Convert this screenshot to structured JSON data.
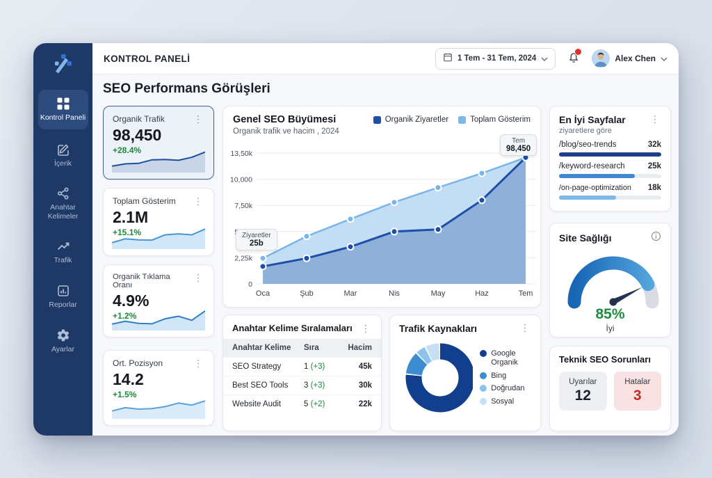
{
  "theme": {
    "sidebar_bg": "#1f3966",
    "accent_dark_blue": "#1d4fa8",
    "accent_light_blue": "#7db9e8",
    "green": "#1a8a3a",
    "red": "#c03028"
  },
  "header": {
    "title": "KONTROL PANELİ",
    "date_range": "1 Tem - 31 Tem, 2024",
    "user_name": "Alex Chen",
    "icons": [
      "calendar-icon",
      "chevron-down-icon",
      "bell-icon",
      "avatar"
    ]
  },
  "sidebar": {
    "logo_icon": "brand-logo",
    "items": [
      {
        "label": "Kontrol Paneli",
        "icon": "dashboard-grid-icon",
        "active": true
      },
      {
        "label": "İçerik",
        "icon": "edit-icon",
        "active": false
      },
      {
        "label": "Anahtar Kelimeler",
        "icon": "nodes-icon",
        "active": false
      },
      {
        "label": "Trafik",
        "icon": "trend-icon",
        "active": false
      },
      {
        "label": "Reporlar",
        "icon": "bar-chart-icon",
        "active": false
      },
      {
        "label": "Ayarlar",
        "icon": "gear-icon",
        "active": false
      }
    ]
  },
  "page": {
    "title": "SEO Performans Görüşleri"
  },
  "stat_cards": [
    {
      "title": "Organik Trafik",
      "value": "98,450",
      "change": "+28.4%",
      "line_color": "#1d4f9e",
      "fill_color": "#c7d2e6",
      "spark": [
        2,
        2.9,
        3.1,
        4.5,
        4.6,
        4.3,
        5.5,
        7.6
      ]
    },
    {
      "title": "Toplam Gösterim",
      "value": "2.1M",
      "change": "+15.1%",
      "line_color": "#4596d6",
      "fill_color": "#cfe5f6",
      "spark": [
        2,
        3.5,
        3.1,
        3.0,
        5.1,
        5.5,
        5.1,
        7.4
      ]
    },
    {
      "title": "Organik Tıklama Oranı",
      "value": "4.9%",
      "change": "+1.2%",
      "line_color": "#2f7fc4",
      "fill_color": "#cde4f6",
      "spark": [
        2,
        3.1,
        2.3,
        2.1,
        4.1,
        5.1,
        3.5,
        7.2
      ]
    },
    {
      "title": "Ort. Pozisyon",
      "value": "14.2",
      "change": "+1.5%",
      "line_color": "#5aa2dc",
      "fill_color": "#d7e9f8",
      "spark": [
        2.6,
        3.9,
        3.3,
        3.5,
        4.3,
        5.7,
        4.9,
        6.6
      ]
    }
  ],
  "main_chart": {
    "type": "area",
    "title": "Genel SEO Büyümesi",
    "subtitle": "Organik trafik ve hacim , 2024",
    "legend": [
      {
        "label": "Organik Ziyaretler",
        "color": "#1d4fa8"
      },
      {
        "label": "Toplam Gösterim",
        "color": "#7db9e8"
      }
    ],
    "x_labels": [
      "Oca",
      "Şub",
      "Mar",
      "Nis",
      "May",
      "Haz",
      "Tem"
    ],
    "y_ticks": [
      "0",
      "2,25k",
      "5,00k",
      "7,50k",
      "10,000",
      "13,50k"
    ],
    "tick_values": [
      0,
      2.25,
      5,
      7.5,
      10,
      13.5
    ],
    "series": [
      {
        "name": "Organik Ziyaretler",
        "color": "#1d4fa8",
        "area": "#6f94c8",
        "values": [
          1.5,
          2.2,
          3.4,
          5.0,
          5.2,
          8.0,
          12.9
        ]
      },
      {
        "name": "Toplam Gösterim",
        "color": "#79b5e9",
        "area": "#b9d8f2",
        "values": [
          2.2,
          4.5,
          6.2,
          7.8,
          9.2,
          10.8,
          12.9
        ]
      }
    ],
    "tooltip_top": {
      "label": "Tem",
      "value": "98,450"
    },
    "tooltip_left": {
      "label": "Ziyaretler",
      "value": "25b"
    }
  },
  "top_pages": {
    "title": "En İyi Sayfalar",
    "subtitle": "ziyaretlere göre",
    "rows": [
      {
        "path": "/blog/seo-trends",
        "value": "32k",
        "pct": 100,
        "color": "#1d3f8e"
      },
      {
        "path": "/keyword-research",
        "value": "25k",
        "pct": 74,
        "color": "#3f87d4"
      },
      {
        "path": "/on-page-optimization",
        "value": "18k",
        "pct": 56,
        "color": "#7cb9e8"
      }
    ]
  },
  "site_health": {
    "title": "Site Sağlığı",
    "value": 85,
    "value_label": "85%",
    "status": "İyi",
    "arc_color_start": "#1766b5",
    "arc_color_end": "#55a5de",
    "track_color": "#d7dce3",
    "needle_color": "#24344f"
  },
  "keyword_rankings": {
    "title": "Anahtar Kelime Sıralamaları",
    "columns": [
      "Anahtar Kelime",
      "Sıra",
      "Hacim"
    ],
    "rows": [
      {
        "keyword": "SEO Strategy",
        "rank": "1",
        "change": "(+3)",
        "volume": "45k"
      },
      {
        "keyword": "Best SEO Tools",
        "rank": "3",
        "change": "(+3)",
        "volume": "30k"
      },
      {
        "keyword": "Website Audit",
        "rank": "5",
        "change": "(+2)",
        "volume": "22k"
      }
    ]
  },
  "traffic_sources": {
    "title": "Trafik Kaynakları",
    "type": "pie",
    "slices": [
      {
        "label": "Google Organik",
        "value": 77,
        "color": "#123f8d"
      },
      {
        "label": "Bing",
        "value": 11,
        "color": "#3d8bd0"
      },
      {
        "label": "Doğrudan",
        "value": 5,
        "color": "#8cc2ec"
      },
      {
        "label": "Sosyal",
        "value": 7,
        "color": "#c6dff5"
      }
    ]
  },
  "technical_issues": {
    "title": "Teknik SEO Sorunları",
    "warnings": {
      "label": "Uyarılar",
      "value": "12"
    },
    "errors": {
      "label": "Hatalar",
      "value": "3"
    }
  }
}
